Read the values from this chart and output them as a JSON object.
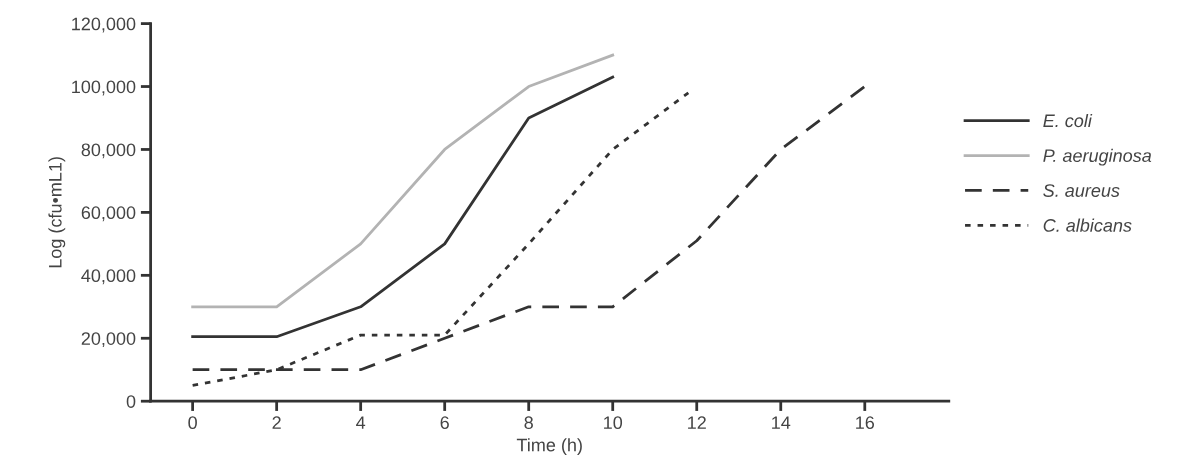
{
  "chart_data": {
    "type": "line",
    "xlabel": "Time (h)",
    "ylabel": "Log (cfu•mL1)",
    "xlim": [
      -1,
      18
    ],
    "xticks": [
      0,
      2,
      4,
      6,
      8,
      10,
      12,
      14,
      16
    ],
    "ylim": [
      0,
      120000
    ],
    "yticks": [
      {
        "value": 0,
        "label": "0"
      },
      {
        "value": 20000,
        "label": "20,000"
      },
      {
        "value": 40000,
        "label": "40,000"
      },
      {
        "value": 60000,
        "label": "60,000"
      },
      {
        "value": 80000,
        "label": "80,000"
      },
      {
        "value": 100000,
        "label": "100,000"
      },
      {
        "value": 120000,
        "label": "120,000"
      }
    ],
    "grid": false,
    "legend": "right",
    "marker": "none",
    "series": [
      {
        "name": "E. coli",
        "color": "#333333",
        "line_style": "solid",
        "x": [
          0,
          2,
          4,
          6,
          8,
          10
        ],
        "values": [
          20500,
          20500,
          30000,
          50000,
          90000,
          103000
        ]
      },
      {
        "name": "P. aeruginosa",
        "color": "#b3b3b3",
        "line_style": "solid",
        "x": [
          0,
          2,
          4,
          6,
          8,
          10
        ],
        "values": [
          30000,
          30000,
          50000,
          80000,
          100000,
          110000
        ]
      },
      {
        "name": "S. aureus",
        "color": "#333333",
        "line_style": "dashed",
        "x": [
          0,
          2,
          4,
          6,
          8,
          10,
          12,
          14,
          16
        ],
        "values": [
          10000,
          10000,
          10000,
          20000,
          30000,
          30000,
          51000,
          80000,
          100000
        ]
      },
      {
        "name": "C. albicans",
        "color": "#333333",
        "line_style": "dotted",
        "x": [
          0,
          2,
          4,
          6,
          8,
          10,
          11.8
        ],
        "values": [
          5000,
          10000,
          21000,
          21000,
          50000,
          80000,
          98000
        ]
      }
    ]
  }
}
